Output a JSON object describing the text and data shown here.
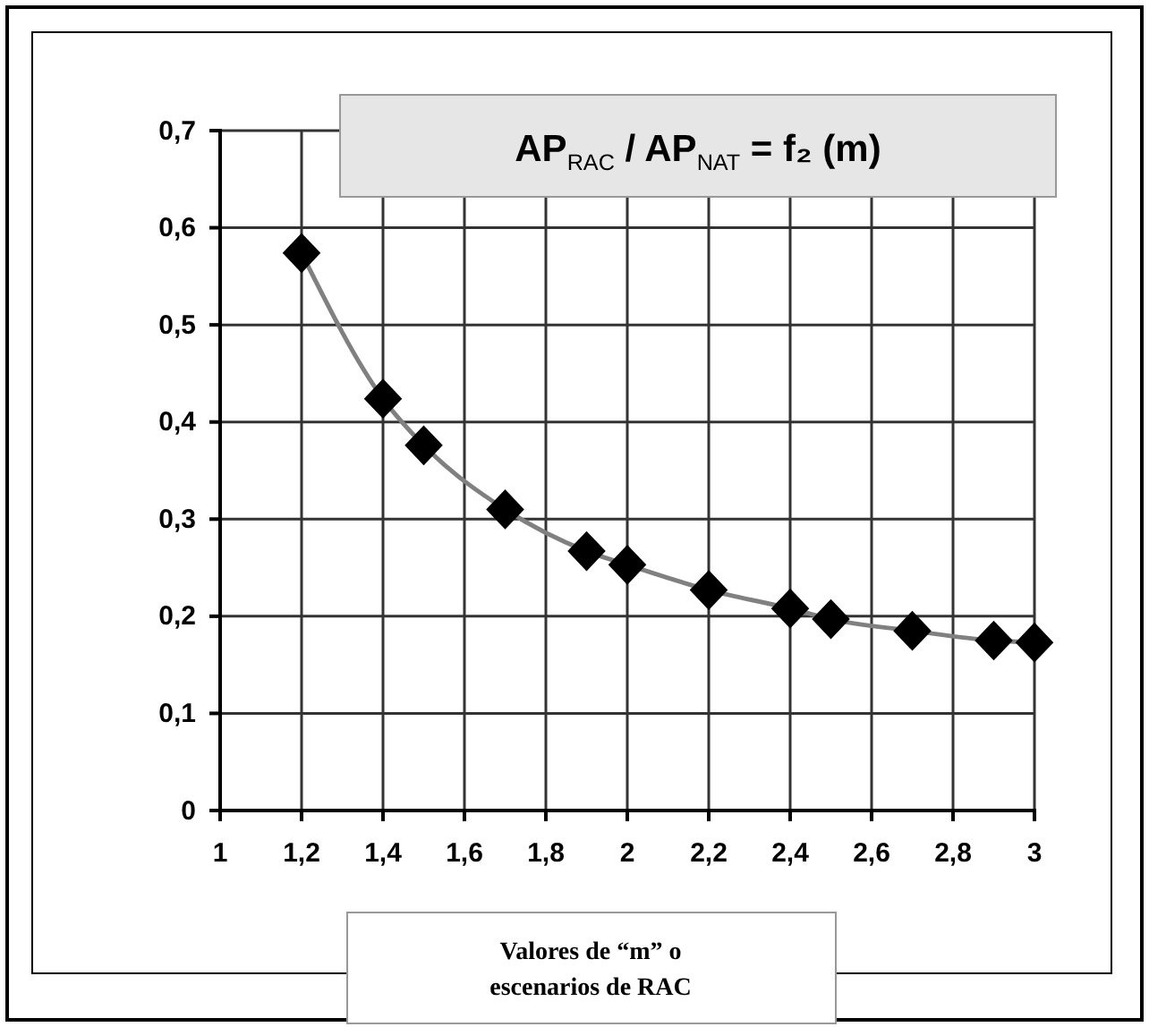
{
  "chart_data": {
    "type": "line",
    "title": "AP$_{RAC}$ / AP$_{NAT}$ = f₂ (m)",
    "xlabel": "Valores de “m” o escenarios de RAC",
    "x": [
      1.2,
      1.4,
      1.5,
      1.7,
      1.9,
      2.0,
      2.2,
      2.4,
      2.5,
      2.7,
      2.9,
      3.0
    ],
    "series": [
      {
        "color": "#808080",
        "values": [
          0.574,
          0.424,
          0.376,
          0.31,
          0.267,
          0.253,
          0.227,
          0.208,
          0.197,
          0.185,
          0.175,
          0.173
        ]
      }
    ],
    "xlim": [
      1,
      3
    ],
    "xticks": [
      1,
      {
        "value": 1.2,
        "label": "1,2"
      },
      {
        "value": 1.4,
        "label": "1,4"
      },
      {
        "value": 1.6,
        "label": "1,6"
      },
      {
        "value": 1.8,
        "label": "1,8"
      },
      2,
      {
        "value": 2.2,
        "label": "2,2"
      },
      {
        "value": 2.4,
        "label": "2,4"
      },
      {
        "value": 2.6,
        "label": "2,6"
      },
      {
        "value": 2.8,
        "label": "2,8"
      },
      3
    ],
    "ylim": [
      0,
      0.7
    ],
    "yticks": [
      0,
      {
        "value": 0.1,
        "label": "0,1"
      },
      {
        "value": 0.2,
        "label": "0,2"
      },
      {
        "value": 0.3,
        "label": "0,3"
      },
      {
        "value": 0.4,
        "label": "0,4"
      },
      {
        "value": 0.5,
        "label": "0,5"
      },
      {
        "value": 0.6,
        "label": "0,6"
      },
      {
        "value": 0.7,
        "label": "0,7"
      }
    ],
    "grid": true,
    "marker": "diamond",
    "line_style": "solid"
  }
}
